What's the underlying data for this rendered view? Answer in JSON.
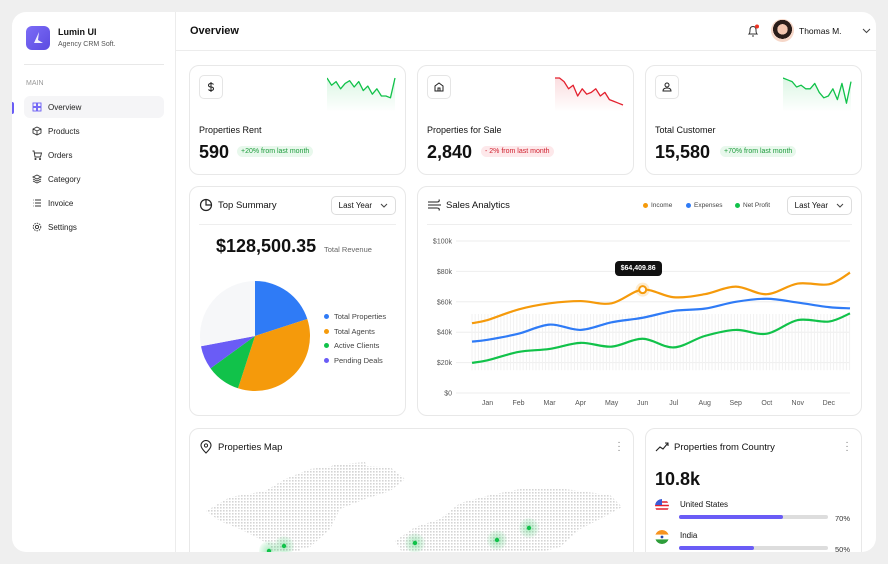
{
  "app": {
    "name": "Lumin UI",
    "subtitle": "Agency CRM Soft."
  },
  "sidebar": {
    "section": "MAIN",
    "items": [
      {
        "label": "Overview",
        "icon": "grid-icon",
        "active": true
      },
      {
        "label": "Products",
        "icon": "box-icon"
      },
      {
        "label": "Orders",
        "icon": "cart-icon"
      },
      {
        "label": "Category",
        "icon": "layers-icon"
      },
      {
        "label": "Invoice",
        "icon": "list-icon"
      },
      {
        "label": "Settings",
        "icon": "gear-icon"
      }
    ]
  },
  "header": {
    "title": "Overview",
    "user": "Thomas M.",
    "notification": true
  },
  "kpis": [
    {
      "label": "Properties Rent",
      "value": "590",
      "change": "+20% from last month",
      "trend": "up",
      "icon": "dollar-icon"
    },
    {
      "label": "Properties for Sale",
      "value": "2,840",
      "change": "- 2% from last month",
      "trend": "down",
      "icon": "home-icon"
    },
    {
      "label": "Total Customer",
      "value": "15,580",
      "change": "+70% from last month",
      "trend": "up",
      "icon": "user-icon"
    }
  ],
  "summary": {
    "title": "Top Summary",
    "period": "Last Year",
    "revenue": "$128,500.35",
    "revenue_label": "Total Revenue"
  },
  "sales": {
    "title": "Sales Analytics",
    "period": "Last Year",
    "tooltip": "$64,409.86"
  },
  "map": {
    "title": "Properties Map"
  },
  "country": {
    "title": "Properties from Country",
    "total": "10.8k",
    "items": [
      {
        "name": "United States",
        "percent": 70,
        "label": "70%"
      },
      {
        "name": "India",
        "percent": 50,
        "label": "50%"
      }
    ]
  },
  "colors": {
    "accent": "#6a5cf6",
    "income": "#f59a0b",
    "expenses": "#2f7bf6",
    "profit": "#11c24a",
    "up": "#1d9c3c",
    "down": "#d0202e"
  },
  "chart_data": [
    {
      "type": "pie",
      "series": [
        {
          "name": "Total Properties",
          "value": 20,
          "color": "#2f7bf6"
        },
        {
          "name": "Total Agents",
          "value": 35,
          "color": "#f59a0b"
        },
        {
          "name": "Active Clients",
          "value": 10,
          "color": "#11c24a"
        },
        {
          "name": "Pending Deals",
          "value": 7,
          "color": "#6a5cf6"
        },
        {
          "name": "",
          "value": 28,
          "color": "#f6f7f9"
        }
      ]
    },
    {
      "type": "line",
      "categories": [
        "Jan",
        "Feb",
        "Mar",
        "Apr",
        "May",
        "Jun",
        "Jul",
        "Aug",
        "Sep",
        "Oct",
        "Nov",
        "Dec"
      ],
      "yticks": [
        "$0",
        "$20k",
        "$40k",
        "$60k",
        "$80k",
        "$100k"
      ],
      "ylim": [
        0,
        100
      ],
      "series": [
        {
          "name": "Income",
          "color": "#f59a0b",
          "values": [
            48,
            55,
            59,
            60.5,
            59,
            68,
            63,
            65,
            70,
            65,
            72,
            71.5
          ]
        },
        {
          "name": "Expenses",
          "color": "#2f7bf6",
          "values": [
            35,
            39,
            45,
            41.5,
            46.5,
            49.5,
            54,
            55.5,
            60,
            62,
            59.5,
            56.5
          ]
        },
        {
          "name": "Net Profit",
          "color": "#11c24a",
          "values": [
            21.5,
            27,
            29,
            33,
            30.5,
            35.7,
            30,
            37.5,
            41.5,
            39,
            48,
            47
          ]
        }
      ]
    }
  ]
}
